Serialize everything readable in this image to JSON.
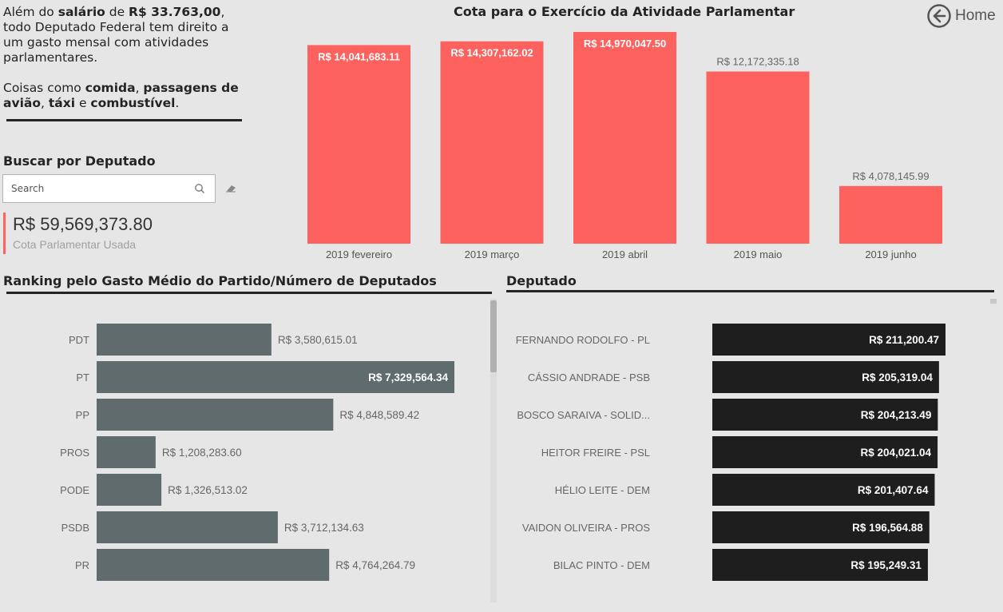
{
  "intro": {
    "p1_a": "Além do ",
    "p1_b": "salário",
    "p1_c": " de ",
    "p1_d": "R$ 33.763,00",
    "p1_e": ", todo Deputado Federal tem direito a um gasto mensal com atividades parlamentares.",
    "p2_a": "Coisas como ",
    "p2_b": "comida",
    "p2_c": ", ",
    "p2_d": "passagens de avião",
    "p2_e": ", ",
    "p2_f": "táxi",
    "p2_g": " e ",
    "p2_h": "combustível",
    "p2_i": "."
  },
  "search": {
    "title": "Buscar por Deputado",
    "placeholder": "Search"
  },
  "kpi": {
    "value": "R$ 59,569,373.80",
    "label": "Cota Parlamentar Usada"
  },
  "home": {
    "label": "Home",
    "icon": "back-arrow-icon"
  },
  "colors": {
    "monthly_bar": "#fd625e",
    "party_bar": "#5f6b6d",
    "deputy_bar": "#1e1e1e"
  },
  "chart_data": [
    {
      "type": "bar",
      "title": "Cota para o Exercício da Atividade Parlamentar",
      "categories": [
        "2019 fevereiro",
        "2019 março",
        "2019 abril",
        "2019 maio",
        "2019 junho"
      ],
      "values": [
        14041683.11,
        14307162.02,
        14970047.5,
        12172335.18,
        4078145.99
      ],
      "labels": [
        "R$ 14,041,683.11",
        "R$ 14,307,162.02",
        "R$ 14,970,047.50",
        "R$ 12,172,335.18",
        "R$ 4,078,145.99"
      ],
      "ylim": [
        0,
        14970047.5
      ],
      "grid": false,
      "legend": "none"
    },
    {
      "type": "bar",
      "orientation": "horizontal",
      "title": "Ranking pelo Gasto Médio do Partido/Número de Deputados",
      "categories": [
        "PDT",
        "PT",
        "PP",
        "PROS",
        "PODE",
        "PSDB",
        "PR"
      ],
      "values": [
        3580615.01,
        7329564.34,
        4848589.42,
        1208283.6,
        1326513.02,
        3712134.63,
        4764264.79
      ],
      "labels": [
        "R$ 3,580,615.01",
        "R$ 7,329,564.34",
        "R$ 4,848,589.42",
        "R$ 1,208,283.60",
        "R$ 1,326,513.02",
        "R$ 3,712,134.63",
        "R$ 4,764,264.79"
      ],
      "xlim": [
        0,
        7329564.34
      ],
      "grid": false,
      "legend": "none"
    },
    {
      "type": "bar",
      "orientation": "horizontal",
      "title": "Deputado",
      "categories": [
        "FERNANDO RODOLFO - PL",
        "CÁSSIO ANDRADE - PSB",
        "BOSCO SARAIVA - SOLID...",
        "HEITOR FREIRE - PSL",
        "HÉLIO LEITE - DEM",
        "VAIDON OLIVEIRA - PROS",
        "BILAC PINTO - DEM"
      ],
      "values": [
        211200.47,
        205319.04,
        204213.49,
        204021.04,
        201407.64,
        196564.88,
        195249.31
      ],
      "labels": [
        "R$ 211,200.47",
        "R$ 205,319.04",
        "R$ 204,213.49",
        "R$ 204,021.04",
        "R$ 201,407.64",
        "R$ 196,564.88",
        "R$ 195,249.31"
      ],
      "xlim": [
        0,
        211200.47
      ],
      "grid": false,
      "legend": "none"
    }
  ]
}
